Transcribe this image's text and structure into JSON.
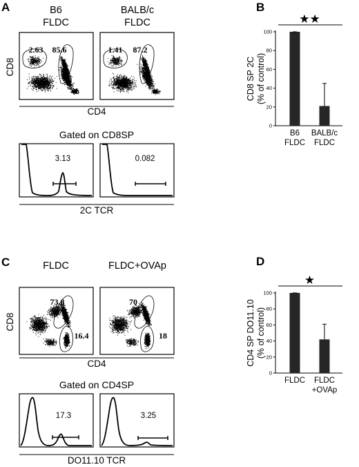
{
  "panel_A": {
    "letter": "A",
    "plots": [
      {
        "line1": "B6",
        "line2": "FLDC",
        "gate_left": "2.63",
        "gate_right": "85.6"
      },
      {
        "line1": "BALB/c",
        "line2": "FLDC",
        "gate_left": "1.41",
        "gate_right": "87.2"
      }
    ],
    "y_axis_label": "CD8",
    "x_axis_label": "CD4",
    "hist_title": "Gated on CD8SP",
    "hist_values": [
      "3.13",
      "0.082"
    ],
    "hist_axis_label": "2C TCR"
  },
  "panel_C": {
    "letter": "C",
    "plots": [
      {
        "line1": "FLDC",
        "gate_top": "73.8",
        "gate_bottom": "16.4"
      },
      {
        "line1": "FLDC+OVAp",
        "gate_top": "70",
        "gate_bottom": "18"
      }
    ],
    "y_axis_label": "CD8",
    "x_axis_label": "CD4",
    "hist_title": "Gated on CD4SP",
    "hist_values": [
      "17.3",
      "3.25"
    ],
    "hist_axis_label": "DO11.10 TCR"
  },
  "chart_data": [
    {
      "panel": "B",
      "type": "bar",
      "title": "",
      "ylabel_line1": "CD8 SP 2C",
      "ylabel_line2": "(% of control)",
      "ylim": [
        0,
        100
      ],
      "yticks": [
        "0",
        "20",
        "40",
        "60",
        "80",
        "100"
      ],
      "categories": [
        {
          "line1": "B6",
          "line2": "FLDC"
        },
        {
          "line1": "BALB/c",
          "line2": "FLDC"
        }
      ],
      "values": [
        100,
        21
      ],
      "errors": [
        0,
        24
      ],
      "significance": "★★",
      "bar_color": "#262626"
    },
    {
      "panel": "D",
      "type": "bar",
      "title": "",
      "ylabel_line1": "CD4 SP DO11.10",
      "ylabel_line2": "(% of control)",
      "ylim": [
        0,
        100
      ],
      "yticks": [
        "0",
        "20",
        "40",
        "60",
        "80",
        "100"
      ],
      "categories": [
        {
          "line1": "FLDC",
          "line2": ""
        },
        {
          "line1": "FLDC",
          "line2": "+OVAp"
        }
      ],
      "values": [
        100,
        42
      ],
      "errors": [
        0,
        19
      ],
      "significance": "★",
      "bar_color": "#262626"
    }
  ]
}
